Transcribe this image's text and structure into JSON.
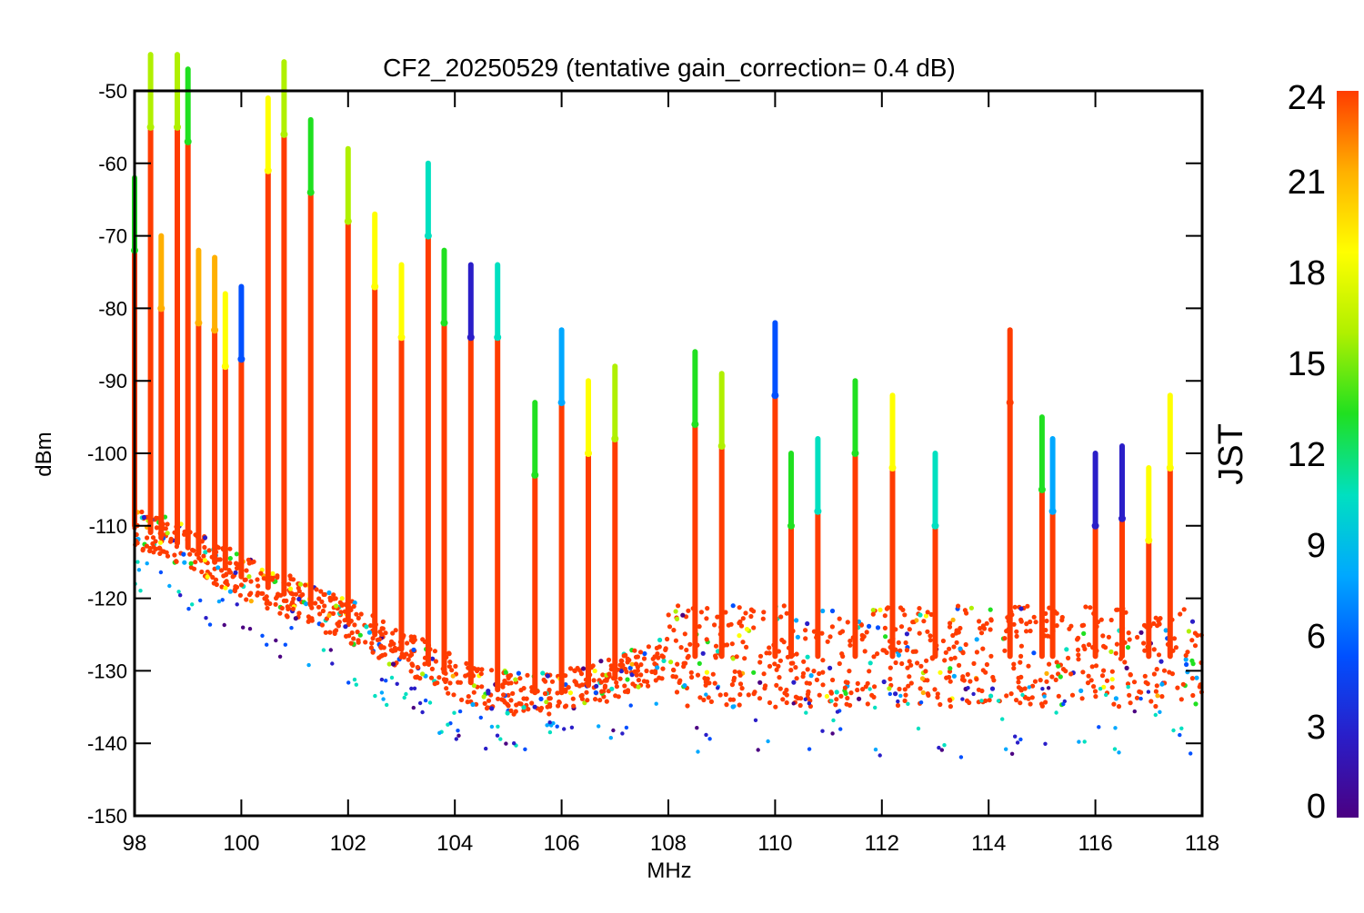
{
  "chart_data": {
    "type": "scatter",
    "title": "CF2_20250529 (tentative gain_correction=  0.4 dB)",
    "xlabel": "MHz",
    "ylabel": "dBm",
    "xlim": [
      98,
      118
    ],
    "ylim": [
      -150,
      -50
    ],
    "xticks": [
      98,
      100,
      102,
      104,
      106,
      108,
      110,
      112,
      114,
      116,
      118
    ],
    "yticks": [
      -50,
      -60,
      -70,
      -80,
      -90,
      -100,
      -110,
      -120,
      -130,
      -140,
      -150
    ],
    "grid": false,
    "marker": "asterisk",
    "colorbar": {
      "label": "JST",
      "range": [
        0,
        24
      ],
      "ticks": [
        0,
        3,
        6,
        9,
        12,
        15,
        18,
        21,
        24
      ],
      "colormap": "rainbow",
      "colors": [
        "#4b0082",
        "#2a1ec8",
        "#0050ff",
        "#00a8ff",
        "#00e0c0",
        "#20e020",
        "#b0f000",
        "#ffff00",
        "#ffb000",
        "#ff3c00"
      ]
    },
    "noise_floor": [
      {
        "x": 98,
        "y": -110
      },
      {
        "x": 99,
        "y": -113
      },
      {
        "x": 100,
        "y": -117
      },
      {
        "x": 101,
        "y": -120
      },
      {
        "x": 102,
        "y": -123
      },
      {
        "x": 103,
        "y": -127
      },
      {
        "x": 104,
        "y": -131
      },
      {
        "x": 105,
        "y": -133
      },
      {
        "x": 106,
        "y": -133
      },
      {
        "x": 107,
        "y": -131
      },
      {
        "x": 108,
        "y": -128
      },
      {
        "x": 110,
        "y": -128
      },
      {
        "x": 112,
        "y": -128
      },
      {
        "x": 114,
        "y": -128
      },
      {
        "x": 116,
        "y": -128
      },
      {
        "x": 118,
        "y": -128
      }
    ],
    "peaks": [
      {
        "x": 98.0,
        "y": -72,
        "jst": 12
      },
      {
        "x": 98.3,
        "y": -55,
        "jst": 15
      },
      {
        "x": 98.5,
        "y": -80,
        "jst": 20
      },
      {
        "x": 98.8,
        "y": -55,
        "jst": 15
      },
      {
        "x": 99.0,
        "y": -57,
        "jst": 14
      },
      {
        "x": 99.2,
        "y": -82,
        "jst": 22
      },
      {
        "x": 99.5,
        "y": -83,
        "jst": 21
      },
      {
        "x": 99.7,
        "y": -88,
        "jst": 18
      },
      {
        "x": 100.0,
        "y": -87,
        "jst": 4
      },
      {
        "x": 100.5,
        "y": -61,
        "jst": 19
      },
      {
        "x": 100.8,
        "y": -56,
        "jst": 16
      },
      {
        "x": 101.3,
        "y": -64,
        "jst": 13
      },
      {
        "x": 102.0,
        "y": -68,
        "jst": 17
      },
      {
        "x": 102.5,
        "y": -77,
        "jst": 18
      },
      {
        "x": 103.0,
        "y": -84,
        "jst": 19
      },
      {
        "x": 103.5,
        "y": -70,
        "jst": 11
      },
      {
        "x": 103.8,
        "y": -82,
        "jst": 12
      },
      {
        "x": 104.3,
        "y": -84,
        "jst": 2
      },
      {
        "x": 104.8,
        "y": -84,
        "jst": 10
      },
      {
        "x": 105.5,
        "y": -103,
        "jst": 14
      },
      {
        "x": 106.0,
        "y": -93,
        "jst": 9
      },
      {
        "x": 106.5,
        "y": -100,
        "jst": 19
      },
      {
        "x": 107.0,
        "y": -98,
        "jst": 16
      },
      {
        "x": 108.5,
        "y": -96,
        "jst": 13
      },
      {
        "x": 109.0,
        "y": -99,
        "jst": 15
      },
      {
        "x": 110.0,
        "y": -92,
        "jst": 4
      },
      {
        "x": 110.3,
        "y": -110,
        "jst": 14
      },
      {
        "x": 110.8,
        "y": -108,
        "jst": 11
      },
      {
        "x": 111.5,
        "y": -100,
        "jst": 13
      },
      {
        "x": 112.2,
        "y": -102,
        "jst": 19
      },
      {
        "x": 113.0,
        "y": -110,
        "jst": 10
      },
      {
        "x": 114.4,
        "y": -93,
        "jst": 23
      },
      {
        "x": 115.0,
        "y": -105,
        "jst": 14
      },
      {
        "x": 115.2,
        "y": -108,
        "jst": 8
      },
      {
        "x": 116.0,
        "y": -110,
        "jst": 3
      },
      {
        "x": 116.5,
        "y": -109,
        "jst": 2
      },
      {
        "x": 117.0,
        "y": -112,
        "jst": 18
      },
      {
        "x": 117.4,
        "y": -102,
        "jst": 19
      }
    ]
  }
}
